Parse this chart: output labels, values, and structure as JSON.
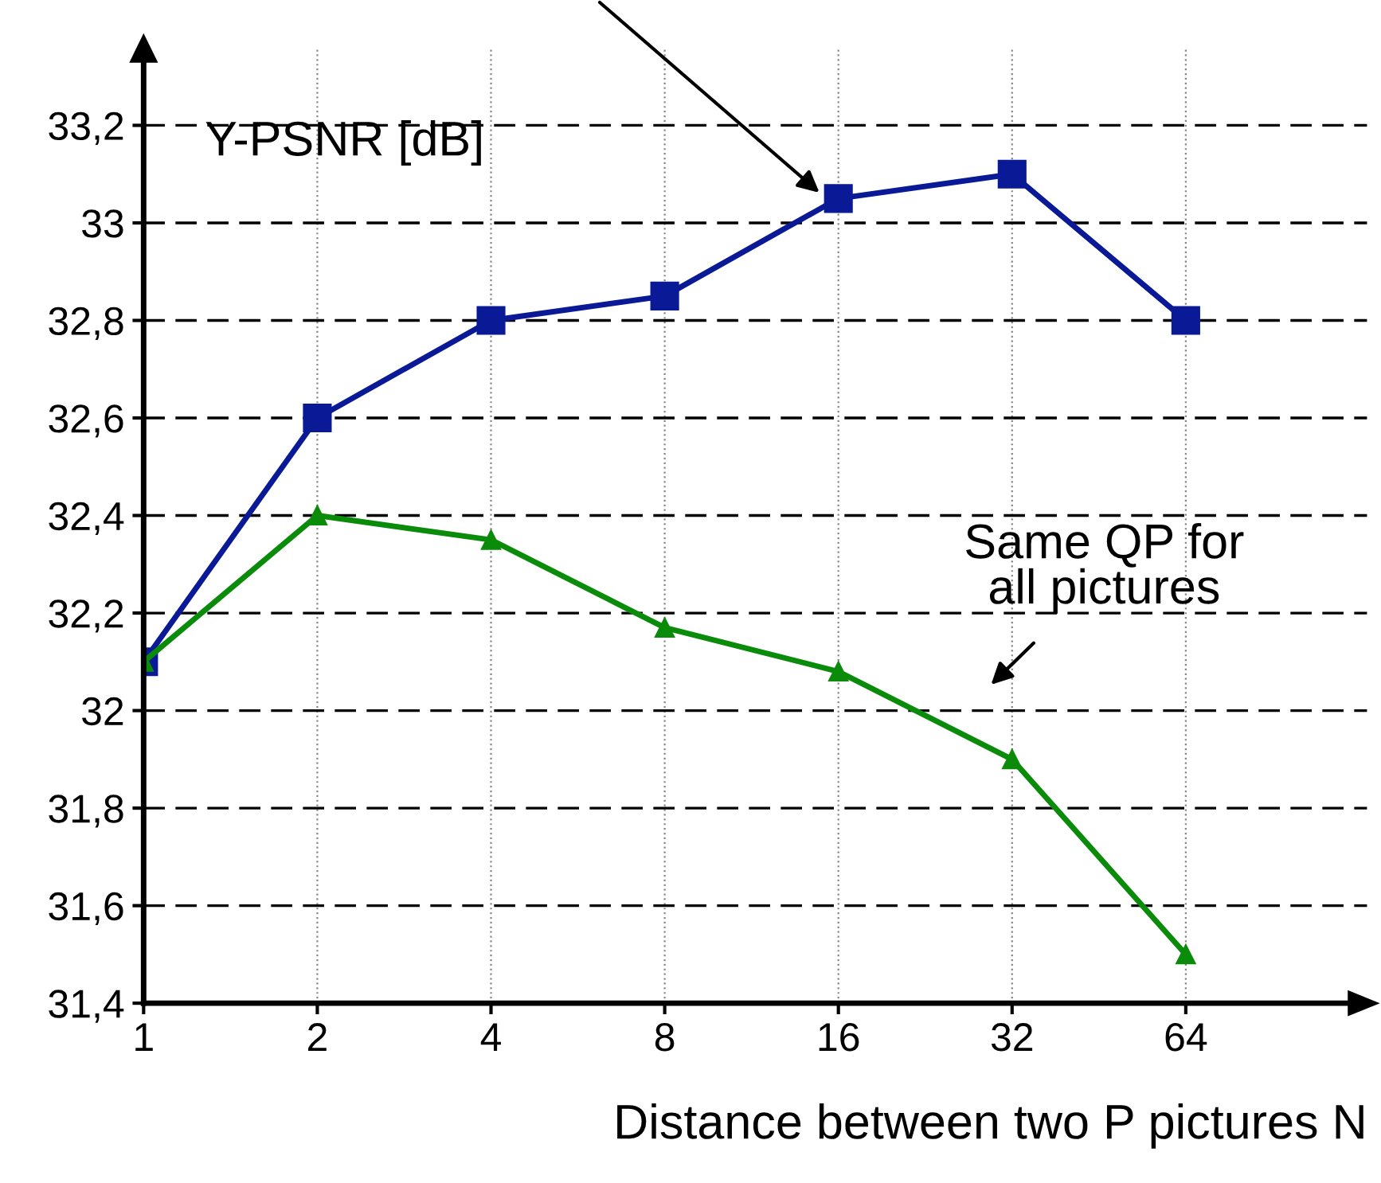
{
  "chart_data": {
    "type": "line",
    "xlabel": "Distance between two P pictures N",
    "ylabel": "Y-PSNR [dB]",
    "x": [
      1,
      2,
      4,
      8,
      16,
      32,
      64
    ],
    "log": "x",
    "xlim": [
      1,
      132
    ],
    "xticks": [
      1,
      2,
      4,
      8,
      16,
      32,
      64
    ],
    "ylim": [
      31.4,
      33.36
    ],
    "yticks": [
      {
        "value": 31.4,
        "label": "31,4"
      },
      {
        "value": 31.6,
        "label": "31,6"
      },
      {
        "value": 31.8,
        "label": "31,8"
      },
      32,
      {
        "value": 32.2,
        "label": "32,2"
      },
      {
        "value": 32.4,
        "label": "32,4"
      },
      {
        "value": 32.6,
        "label": "32,6"
      },
      {
        "value": 32.8,
        "label": "32,8"
      },
      33,
      {
        "value": 33.2,
        "label": "33,2"
      }
    ],
    "grid": true,
    "series": [
      {
        "color": "#0a1a96",
        "marker": "square",
        "values": [
          32.1,
          32.6,
          32.8,
          32.85,
          33.05,
          33.1,
          32.8
        ]
      },
      {
        "color": "#0a8c0a",
        "marker": "triangle",
        "values": [
          32.1,
          32.4,
          32.35,
          32.17,
          32.08,
          31.9,
          31.5
        ]
      }
    ],
    "annotations": [
      "Same QP for\nall pictures"
    ]
  }
}
